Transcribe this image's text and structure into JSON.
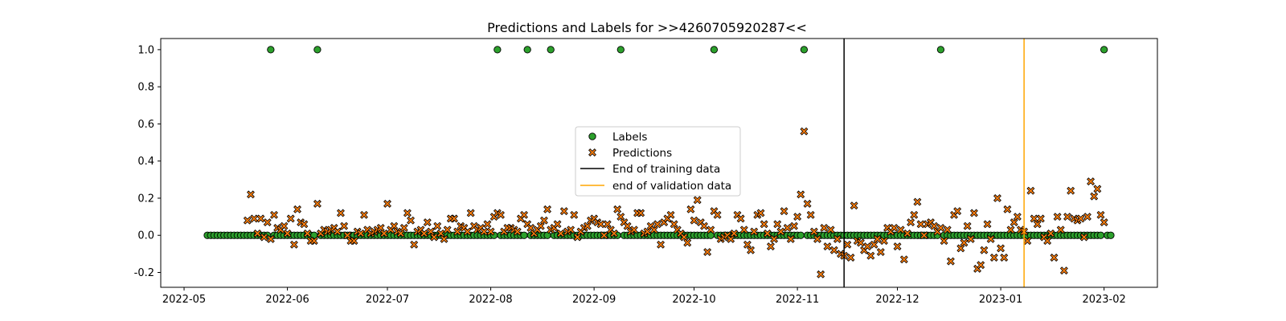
{
  "chart_data": {
    "type": "scatter",
    "title": "Predictions and Labels for >>4260705920287<<",
    "xlabel": "",
    "ylabel": "",
    "x_range": [
      "2022-04-24",
      "2023-02-17"
    ],
    "ylim": [
      -0.28,
      1.06
    ],
    "x_ticks": [
      "2022-05",
      "2022-06",
      "2022-07",
      "2022-08",
      "2022-09",
      "2022-10",
      "2022-11",
      "2022-12",
      "2023-01",
      "2023-02"
    ],
    "y_ticks": [
      "-0.2",
      "0.0",
      "0.2",
      "0.4",
      "0.6",
      "0.8",
      "1.0"
    ],
    "grid": false,
    "legend_position": "center",
    "series": [
      {
        "name": "Labels",
        "marker": "circle",
        "color": "#2ca02c",
        "edge_color": "#000000",
        "points": [
          [
            "2022-05-27",
            1.0
          ],
          [
            "2022-06-10",
            1.0
          ],
          [
            "2022-08-03",
            1.0
          ],
          [
            "2022-08-12",
            1.0
          ],
          [
            "2022-08-19",
            1.0
          ],
          [
            "2022-09-09",
            1.0
          ],
          [
            "2022-10-07",
            1.0
          ],
          [
            "2022-11-03",
            1.0
          ],
          [
            "2022-12-14",
            1.0
          ],
          [
            "2023-02-01",
            1.0
          ]
        ],
        "baseline_value": 0.0,
        "baseline_from": "2022-05-08",
        "baseline_to": "2023-02-03"
      },
      {
        "name": "Predictions",
        "marker": "X",
        "color": "#ff7f0e",
        "edge_color": "#000000",
        "points": [
          [
            "2022-05-20",
            0.08
          ],
          [
            "2022-05-21",
            0.22
          ],
          [
            "2022-05-22",
            0.09
          ],
          [
            "2022-05-23",
            0.01
          ],
          [
            "2022-05-24",
            0.09
          ],
          [
            "2022-05-25",
            -0.01
          ],
          [
            "2022-05-26",
            0.07
          ],
          [
            "2022-05-27",
            -0.02
          ],
          [
            "2022-05-28",
            0.11
          ],
          [
            "2022-05-29",
            0.04
          ],
          [
            "2022-05-30",
            0.03
          ],
          [
            "2022-05-31",
            0.05
          ],
          [
            "2022-06-01",
            0.01
          ],
          [
            "2022-06-02",
            0.09
          ],
          [
            "2022-06-03",
            -0.05
          ],
          [
            "2022-06-04",
            0.14
          ],
          [
            "2022-06-05",
            0.07
          ],
          [
            "2022-06-06",
            0.06
          ],
          [
            "2022-06-07",
            0.01
          ],
          [
            "2022-06-08",
            -0.03
          ],
          [
            "2022-06-09",
            -0.03
          ],
          [
            "2022-06-10",
            0.17
          ],
          [
            "2022-06-11",
            0.01
          ],
          [
            "2022-06-12",
            0.03
          ],
          [
            "2022-06-13",
            0.02
          ],
          [
            "2022-06-14",
            0.03
          ],
          [
            "2022-06-15",
            0.04
          ],
          [
            "2022-06-16",
            0.02
          ],
          [
            "2022-06-17",
            0.12
          ],
          [
            "2022-06-18",
            0.05
          ],
          [
            "2022-06-19",
            0.0
          ],
          [
            "2022-06-20",
            -0.03
          ],
          [
            "2022-06-21",
            -0.03
          ],
          [
            "2022-06-22",
            0.02
          ],
          [
            "2022-06-23",
            0.01
          ],
          [
            "2022-06-24",
            0.11
          ],
          [
            "2022-06-25",
            0.03
          ],
          [
            "2022-06-26",
            0.01
          ],
          [
            "2022-06-27",
            0.02
          ],
          [
            "2022-06-28",
            0.03
          ],
          [
            "2022-06-29",
            0.04
          ],
          [
            "2022-06-30",
            0.01
          ],
          [
            "2022-07-01",
            0.17
          ],
          [
            "2022-07-02",
            0.03
          ],
          [
            "2022-07-03",
            0.05
          ],
          [
            "2022-07-04",
            0.02
          ],
          [
            "2022-07-05",
            0.01
          ],
          [
            "2022-07-06",
            0.04
          ],
          [
            "2022-07-07",
            0.12
          ],
          [
            "2022-07-08",
            0.08
          ],
          [
            "2022-07-09",
            -0.05
          ],
          [
            "2022-07-10",
            0.02
          ],
          [
            "2022-07-11",
            0.03
          ],
          [
            "2022-07-12",
            0.01
          ],
          [
            "2022-07-13",
            0.07
          ],
          [
            "2022-07-14",
            0.02
          ],
          [
            "2022-07-15",
            -0.01
          ],
          [
            "2022-07-16",
            0.05
          ],
          [
            "2022-07-17",
            0.01
          ],
          [
            "2022-07-18",
            -0.02
          ],
          [
            "2022-07-19",
            0.03
          ],
          [
            "2022-07-20",
            0.09
          ],
          [
            "2022-07-21",
            0.09
          ],
          [
            "2022-07-22",
            0.02
          ],
          [
            "2022-07-23",
            0.05
          ],
          [
            "2022-07-24",
            0.04
          ],
          [
            "2022-07-25",
            0.02
          ],
          [
            "2022-07-26",
            0.12
          ],
          [
            "2022-07-27",
            0.05
          ],
          [
            "2022-07-28",
            0.03
          ],
          [
            "2022-07-29",
            0.04
          ],
          [
            "2022-07-30",
            0.02
          ],
          [
            "2022-07-31",
            0.06
          ],
          [
            "2022-08-01",
            0.02
          ],
          [
            "2022-08-02",
            0.1
          ],
          [
            "2022-08-03",
            0.12
          ],
          [
            "2022-08-04",
            0.11
          ],
          [
            "2022-08-05",
            0.02
          ],
          [
            "2022-08-06",
            0.04
          ],
          [
            "2022-08-07",
            0.04
          ],
          [
            "2022-08-08",
            0.03
          ],
          [
            "2022-08-09",
            0.02
          ],
          [
            "2022-08-10",
            0.09
          ],
          [
            "2022-08-11",
            0.11
          ],
          [
            "2022-08-12",
            0.06
          ],
          [
            "2022-08-13",
            0.04
          ],
          [
            "2022-08-14",
            0.01
          ],
          [
            "2022-08-15",
            0.03
          ],
          [
            "2022-08-16",
            0.05
          ],
          [
            "2022-08-17",
            0.08
          ],
          [
            "2022-08-18",
            0.14
          ],
          [
            "2022-08-19",
            0.03
          ],
          [
            "2022-08-20",
            0.04
          ],
          [
            "2022-08-21",
            0.06
          ],
          [
            "2022-08-22",
            0.01
          ],
          [
            "2022-08-23",
            0.13
          ],
          [
            "2022-08-24",
            0.02
          ],
          [
            "2022-08-25",
            0.03
          ],
          [
            "2022-08-26",
            0.11
          ],
          [
            "2022-08-27",
            -0.01
          ],
          [
            "2022-08-28",
            0.02
          ],
          [
            "2022-08-29",
            0.04
          ],
          [
            "2022-08-30",
            0.05
          ],
          [
            "2022-08-31",
            0.08
          ],
          [
            "2022-09-01",
            0.09
          ],
          [
            "2022-09-02",
            0.07
          ],
          [
            "2022-09-03",
            0.06
          ],
          [
            "2022-09-04",
            0.0
          ],
          [
            "2022-09-05",
            0.06
          ],
          [
            "2022-09-06",
            0.03
          ],
          [
            "2022-09-07",
            0.01
          ],
          [
            "2022-09-08",
            0.14
          ],
          [
            "2022-09-09",
            0.1
          ],
          [
            "2022-09-10",
            0.07
          ],
          [
            "2022-09-11",
            0.05
          ],
          [
            "2022-09-12",
            0.02
          ],
          [
            "2022-09-13",
            0.03
          ],
          [
            "2022-09-14",
            0.12
          ],
          [
            "2022-09-15",
            0.12
          ],
          [
            "2022-09-16",
            0.01
          ],
          [
            "2022-09-17",
            0.02
          ],
          [
            "2022-09-18",
            0.05
          ],
          [
            "2022-09-19",
            0.03
          ],
          [
            "2022-09-20",
            0.06
          ],
          [
            "2022-09-21",
            -0.05
          ],
          [
            "2022-09-22",
            0.07
          ],
          [
            "2022-09-23",
            0.09
          ],
          [
            "2022-09-24",
            0.11
          ],
          [
            "2022-09-25",
            0.06
          ],
          [
            "2022-09-26",
            0.03
          ],
          [
            "2022-09-27",
            0.01
          ],
          [
            "2022-09-28",
            -0.01
          ],
          [
            "2022-09-29",
            -0.04
          ],
          [
            "2022-09-30",
            0.14
          ],
          [
            "2022-10-01",
            0.08
          ],
          [
            "2022-10-02",
            0.19
          ],
          [
            "2022-10-03",
            0.07
          ],
          [
            "2022-10-04",
            0.05
          ],
          [
            "2022-10-05",
            -0.09
          ],
          [
            "2022-10-06",
            0.03
          ],
          [
            "2022-10-07",
            0.13
          ],
          [
            "2022-10-08",
            0.11
          ],
          [
            "2022-10-09",
            -0.02
          ],
          [
            "2022-10-10",
            -0.01
          ],
          [
            "2022-10-11",
            0.0
          ],
          [
            "2022-10-12",
            -0.02
          ],
          [
            "2022-10-13",
            0.01
          ],
          [
            "2022-10-14",
            0.11
          ],
          [
            "2022-10-15",
            0.09
          ],
          [
            "2022-10-16",
            0.03
          ],
          [
            "2022-10-17",
            -0.05
          ],
          [
            "2022-10-18",
            -0.08
          ],
          [
            "2022-10-19",
            0.02
          ],
          [
            "2022-10-20",
            0.11
          ],
          [
            "2022-10-21",
            0.12
          ],
          [
            "2022-10-22",
            0.06
          ],
          [
            "2022-10-23",
            0.01
          ],
          [
            "2022-10-24",
            -0.06
          ],
          [
            "2022-10-25",
            -0.02
          ],
          [
            "2022-10-26",
            0.06
          ],
          [
            "2022-10-27",
            0.02
          ],
          [
            "2022-10-28",
            0.13
          ],
          [
            "2022-10-29",
            0.04
          ],
          [
            "2022-10-30",
            -0.02
          ],
          [
            "2022-10-31",
            0.05
          ],
          [
            "2022-11-01",
            0.1
          ],
          [
            "2022-11-02",
            0.22
          ],
          [
            "2022-11-03",
            0.56
          ],
          [
            "2022-11-04",
            0.17
          ],
          [
            "2022-11-05",
            0.11
          ],
          [
            "2022-11-06",
            0.02
          ],
          [
            "2022-11-07",
            -0.02
          ],
          [
            "2022-11-08",
            -0.21
          ],
          [
            "2022-11-09",
            0.04
          ],
          [
            "2022-11-10",
            -0.06
          ],
          [
            "2022-11-11",
            0.03
          ],
          [
            "2022-11-12",
            -0.08
          ],
          [
            "2022-11-13",
            -0.02
          ],
          [
            "2022-11-14",
            -0.1
          ],
          [
            "2022-11-15",
            -0.11
          ],
          [
            "2022-11-16",
            -0.05
          ],
          [
            "2022-11-17",
            -0.12
          ],
          [
            "2022-11-18",
            0.16
          ],
          [
            "2022-11-19",
            -0.03
          ],
          [
            "2022-11-20",
            -0.04
          ],
          [
            "2022-11-21",
            -0.08
          ],
          [
            "2022-11-22",
            -0.06
          ],
          [
            "2022-11-23",
            -0.11
          ],
          [
            "2022-11-24",
            -0.05
          ],
          [
            "2022-11-25",
            -0.02
          ],
          [
            "2022-11-26",
            -0.09
          ],
          [
            "2022-11-27",
            -0.03
          ],
          [
            "2022-11-28",
            0.04
          ],
          [
            "2022-11-29",
            0.02
          ],
          [
            "2022-11-30",
            0.04
          ],
          [
            "2022-12-01",
            -0.06
          ],
          [
            "2022-12-02",
            0.03
          ],
          [
            "2022-12-03",
            -0.13
          ],
          [
            "2022-12-04",
            0.01
          ],
          [
            "2022-12-05",
            0.07
          ],
          [
            "2022-12-06",
            0.11
          ],
          [
            "2022-12-07",
            0.18
          ],
          [
            "2022-12-08",
            0.06
          ],
          [
            "2022-12-09",
            0.0
          ],
          [
            "2022-12-10",
            0.06
          ],
          [
            "2022-12-11",
            0.07
          ],
          [
            "2022-12-12",
            0.05
          ],
          [
            "2022-12-13",
            0.02
          ],
          [
            "2022-12-14",
            0.04
          ],
          [
            "2022-12-15",
            -0.03
          ],
          [
            "2022-12-16",
            0.03
          ],
          [
            "2022-12-17",
            -0.14
          ],
          [
            "2022-12-18",
            0.11
          ],
          [
            "2022-12-19",
            0.13
          ],
          [
            "2022-12-20",
            -0.07
          ],
          [
            "2022-12-21",
            -0.04
          ],
          [
            "2022-12-22",
            0.05
          ],
          [
            "2022-12-23",
            -0.02
          ],
          [
            "2022-12-24",
            0.12
          ],
          [
            "2022-12-25",
            -0.18
          ],
          [
            "2022-12-26",
            -0.16
          ],
          [
            "2022-12-27",
            -0.08
          ],
          [
            "2022-12-28",
            0.06
          ],
          [
            "2022-12-29",
            -0.02
          ],
          [
            "2022-12-30",
            -0.12
          ],
          [
            "2022-12-31",
            0.2
          ],
          [
            "2023-01-01",
            -0.07
          ],
          [
            "2023-01-02",
            -0.12
          ],
          [
            "2023-01-03",
            0.14
          ],
          [
            "2023-01-04",
            0.03
          ],
          [
            "2023-01-05",
            0.07
          ],
          [
            "2023-01-06",
            0.1
          ],
          [
            "2023-01-07",
            0.03
          ],
          [
            "2023-01-08",
            0.02
          ],
          [
            "2023-01-09",
            -0.03
          ],
          [
            "2023-01-10",
            0.24
          ],
          [
            "2023-01-11",
            0.09
          ],
          [
            "2023-01-12",
            0.06
          ],
          [
            "2023-01-13",
            0.09
          ],
          [
            "2023-01-14",
            -0.01
          ],
          [
            "2023-01-15",
            -0.03
          ],
          [
            "2023-01-16",
            0.01
          ],
          [
            "2023-01-17",
            -0.12
          ],
          [
            "2023-01-18",
            0.1
          ],
          [
            "2023-01-19",
            0.03
          ],
          [
            "2023-01-20",
            -0.19
          ],
          [
            "2023-01-21",
            0.1
          ],
          [
            "2023-01-22",
            0.24
          ],
          [
            "2023-01-23",
            0.09
          ],
          [
            "2023-01-24",
            0.08
          ],
          [
            "2023-01-25",
            0.09
          ],
          [
            "2023-01-26",
            -0.01
          ],
          [
            "2023-01-27",
            0.1
          ],
          [
            "2023-01-28",
            0.29
          ],
          [
            "2023-01-29",
            0.21
          ],
          [
            "2023-01-30",
            0.25
          ],
          [
            "2023-01-31",
            0.11
          ],
          [
            "2023-02-01",
            0.07
          ]
        ]
      },
      {
        "name": "End of training data",
        "type": "vline",
        "x": "2022-11-15",
        "color": "#000000"
      },
      {
        "name": "end of validation data",
        "type": "vline",
        "x": "2023-01-08",
        "color": "#ffa500"
      }
    ]
  }
}
